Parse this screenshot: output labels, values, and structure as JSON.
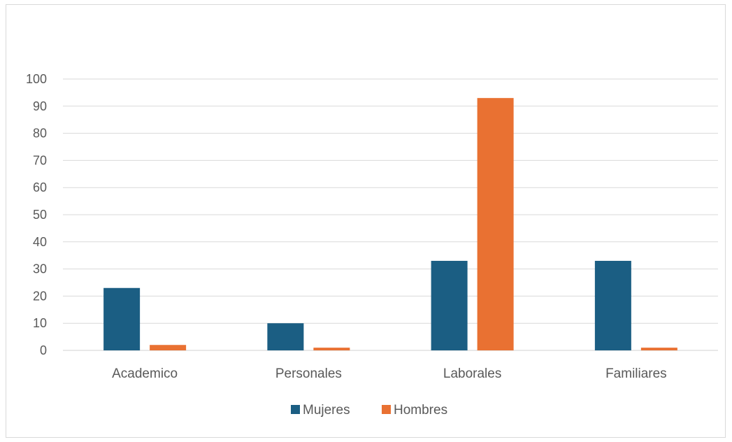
{
  "chart_data": {
    "type": "bar",
    "title": "",
    "xlabel": "",
    "ylabel": "",
    "categories": [
      "Academico",
      "Personales",
      "Laborales",
      "Familiares"
    ],
    "series": [
      {
        "name": "Mujeres",
        "color": "#1b5e83",
        "values": [
          23,
          10,
          33,
          33
        ]
      },
      {
        "name": "Hombres",
        "color": "#e97132",
        "values": [
          2,
          1,
          93,
          1
        ]
      }
    ],
    "ylim": [
      0,
      100
    ],
    "yticks": [
      "0",
      "10",
      "20",
      "30",
      "40",
      "50",
      "60",
      "70",
      "80",
      "90",
      "100"
    ],
    "grid": true,
    "legend_position": "bottom"
  }
}
